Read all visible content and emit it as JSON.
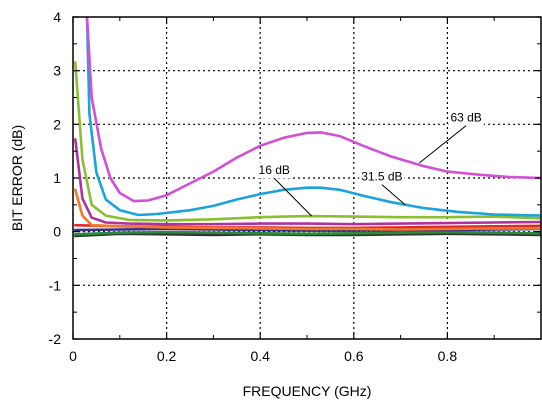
{
  "chart_data": {
    "type": "line",
    "title": "",
    "xlabel": "FREQUENCY (GHz)",
    "ylabel": "BIT ERROR (dB)",
    "xlim": [
      0,
      1.0
    ],
    "ylim": [
      -2,
      4
    ],
    "x_ticks": [
      "0",
      "0.2",
      "0.4",
      "0.6",
      "0.8"
    ],
    "y_ticks": [
      "-2",
      "-1",
      "0",
      "1",
      "2",
      "3",
      "4"
    ],
    "grid": true,
    "series": [
      {
        "name": "63 dB",
        "color": "#d24fd6",
        "points": [
          [
            0.03,
            4.0
          ],
          [
            0.04,
            2.5
          ],
          [
            0.06,
            1.55
          ],
          [
            0.08,
            1.0
          ],
          [
            0.1,
            0.72
          ],
          [
            0.13,
            0.57
          ],
          [
            0.16,
            0.58
          ],
          [
            0.2,
            0.68
          ],
          [
            0.25,
            0.9
          ],
          [
            0.3,
            1.12
          ],
          [
            0.35,
            1.38
          ],
          [
            0.4,
            1.6
          ],
          [
            0.45,
            1.75
          ],
          [
            0.5,
            1.84
          ],
          [
            0.53,
            1.85
          ],
          [
            0.57,
            1.78
          ],
          [
            0.62,
            1.6
          ],
          [
            0.68,
            1.4
          ],
          [
            0.75,
            1.22
          ],
          [
            0.8,
            1.12
          ],
          [
            0.87,
            1.06
          ],
          [
            0.93,
            1.02
          ],
          [
            1.0,
            1.0
          ]
        ]
      },
      {
        "name": "31.5 dB",
        "color": "#1ba3dc",
        "points": [
          [
            0.03,
            4.0
          ],
          [
            0.035,
            2.2
          ],
          [
            0.05,
            1.1
          ],
          [
            0.07,
            0.6
          ],
          [
            0.1,
            0.4
          ],
          [
            0.14,
            0.31
          ],
          [
            0.18,
            0.33
          ],
          [
            0.25,
            0.4
          ],
          [
            0.3,
            0.48
          ],
          [
            0.35,
            0.6
          ],
          [
            0.4,
            0.7
          ],
          [
            0.45,
            0.78
          ],
          [
            0.5,
            0.82
          ],
          [
            0.53,
            0.82
          ],
          [
            0.57,
            0.78
          ],
          [
            0.62,
            0.67
          ],
          [
            0.68,
            0.55
          ],
          [
            0.75,
            0.44
          ],
          [
            0.82,
            0.37
          ],
          [
            0.9,
            0.32
          ],
          [
            1.0,
            0.3
          ]
        ]
      },
      {
        "name": "16 dB",
        "color": "#8cbf2e",
        "points": [
          [
            0.005,
            3.15
          ],
          [
            0.02,
            1.35
          ],
          [
            0.04,
            0.5
          ],
          [
            0.07,
            0.3
          ],
          [
            0.12,
            0.22
          ],
          [
            0.2,
            0.21
          ],
          [
            0.3,
            0.23
          ],
          [
            0.4,
            0.27
          ],
          [
            0.5,
            0.29
          ],
          [
            0.6,
            0.28
          ],
          [
            0.7,
            0.27
          ],
          [
            0.8,
            0.27
          ],
          [
            0.9,
            0.28
          ],
          [
            1.0,
            0.25
          ]
        ]
      },
      {
        "name": "",
        "color": "#b0339b",
        "points": [
          [
            0.005,
            1.72
          ],
          [
            0.02,
            0.62
          ],
          [
            0.04,
            0.26
          ],
          [
            0.07,
            0.17
          ],
          [
            0.12,
            0.15
          ],
          [
            0.2,
            0.14
          ],
          [
            0.3,
            0.14
          ],
          [
            0.4,
            0.15
          ],
          [
            0.5,
            0.15
          ],
          [
            0.6,
            0.14
          ],
          [
            0.7,
            0.15
          ],
          [
            0.8,
            0.16
          ],
          [
            0.9,
            0.17
          ],
          [
            1.0,
            0.18
          ]
        ]
      },
      {
        "name": "",
        "color": "#f0782a",
        "points": [
          [
            0.005,
            0.78
          ],
          [
            0.02,
            0.3
          ],
          [
            0.04,
            0.12
          ],
          [
            0.1,
            0.1
          ],
          [
            0.2,
            0.08
          ],
          [
            0.3,
            0.07
          ],
          [
            0.4,
            0.06
          ],
          [
            0.5,
            0.05
          ],
          [
            0.6,
            0.05
          ],
          [
            0.7,
            0.04
          ],
          [
            0.8,
            0.05
          ],
          [
            0.9,
            0.06
          ],
          [
            1.0,
            0.06
          ]
        ]
      },
      {
        "name": "",
        "color": "#e02a2a",
        "points": [
          [
            0.005,
            0.12
          ],
          [
            0.1,
            0.1
          ],
          [
            0.2,
            0.09
          ],
          [
            0.3,
            0.08
          ],
          [
            0.4,
            0.08
          ],
          [
            0.5,
            0.07
          ],
          [
            0.6,
            0.07
          ],
          [
            0.7,
            0.08
          ],
          [
            0.8,
            0.09
          ],
          [
            0.9,
            0.1
          ],
          [
            1.0,
            0.11
          ]
        ]
      },
      {
        "name": "",
        "color": "#3a2d8c",
        "points": [
          [
            0.005,
            0.03
          ],
          [
            0.1,
            0.04
          ],
          [
            0.2,
            0.05
          ],
          [
            0.3,
            0.04
          ],
          [
            0.4,
            0.03
          ],
          [
            0.5,
            0.02
          ],
          [
            0.6,
            0.02
          ],
          [
            0.7,
            0.03
          ],
          [
            0.8,
            0.03
          ],
          [
            0.9,
            0.04
          ],
          [
            1.0,
            0.05
          ]
        ]
      },
      {
        "name": "",
        "color": "#2a8c3a",
        "points": [
          [
            0.005,
            -0.05
          ],
          [
            0.1,
            -0.02
          ],
          [
            0.2,
            -0.01
          ],
          [
            0.3,
            -0.02
          ],
          [
            0.4,
            -0.03
          ],
          [
            0.5,
            -0.04
          ],
          [
            0.6,
            -0.03
          ],
          [
            0.7,
            -0.02
          ],
          [
            0.8,
            -0.01
          ],
          [
            0.9,
            -0.02
          ],
          [
            1.0,
            -0.03
          ]
        ]
      },
      {
        "name": "",
        "color": "#333333",
        "points": [
          [
            0.005,
            -0.08
          ],
          [
            0.1,
            -0.04
          ],
          [
            0.2,
            -0.05
          ],
          [
            0.3,
            -0.06
          ],
          [
            0.4,
            -0.05
          ],
          [
            0.5,
            -0.06
          ],
          [
            0.6,
            -0.06
          ],
          [
            0.7,
            -0.05
          ],
          [
            0.8,
            -0.04
          ],
          [
            0.9,
            -0.05
          ],
          [
            1.0,
            -0.06
          ]
        ]
      }
    ],
    "annotations": [
      {
        "text": "63 dB",
        "x": 0.84,
        "y": 2.05,
        "arrow_to": [
          0.74,
          1.28
        ]
      },
      {
        "text": "31.5 dB",
        "x": 0.66,
        "y": 0.95,
        "arrow_to": [
          0.71,
          0.5
        ]
      },
      {
        "text": "16 dB",
        "x": 0.43,
        "y": 1.07,
        "arrow_to": [
          0.51,
          0.29
        ]
      }
    ]
  }
}
